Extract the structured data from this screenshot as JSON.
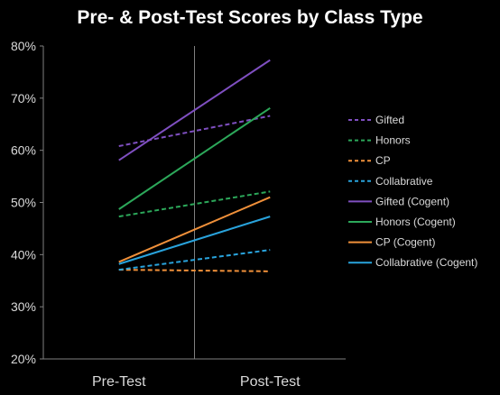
{
  "chart_data": {
    "type": "line",
    "title": "Pre- & Post-Test Scores by Class Type",
    "categories": [
      "Pre-Test",
      "Post-Test"
    ],
    "ylim": [
      0.2,
      0.8
    ],
    "yticks": [
      "20%",
      "30%",
      "40%",
      "50%",
      "60%",
      "70%",
      "80%"
    ],
    "ytick_values": [
      0.2,
      0.3,
      0.4,
      0.5,
      0.6,
      0.7,
      0.8
    ],
    "grid": "vertical divider between categories",
    "legend_position": "right",
    "series": [
      {
        "name": "Gifted",
        "values": [
          0.608,
          0.666
        ],
        "color": "#7f4fc1",
        "dash": true
      },
      {
        "name": "Honors",
        "values": [
          0.473,
          0.521
        ],
        "color": "#2ca85a",
        "dash": true
      },
      {
        "name": "CP",
        "values": [
          0.371,
          0.368
        ],
        "color": "#f0903a",
        "dash": true
      },
      {
        "name": "Collabrative",
        "values": [
          0.371,
          0.409
        ],
        "color": "#29a3dc",
        "dash": true
      },
      {
        "name": "Gifted (Cogent)",
        "values": [
          0.581,
          0.773
        ],
        "color": "#7f4fc1",
        "dash": false
      },
      {
        "name": "Honors (Cogent)",
        "values": [
          0.487,
          0.681
        ],
        "color": "#2ca85a",
        "dash": false
      },
      {
        "name": "CP (Cogent)",
        "values": [
          0.386,
          0.51
        ],
        "color": "#f0903a",
        "dash": false
      },
      {
        "name": "Collabrative (Cogent)",
        "values": [
          0.382,
          0.473
        ],
        "color": "#29a3dc",
        "dash": false
      }
    ]
  }
}
